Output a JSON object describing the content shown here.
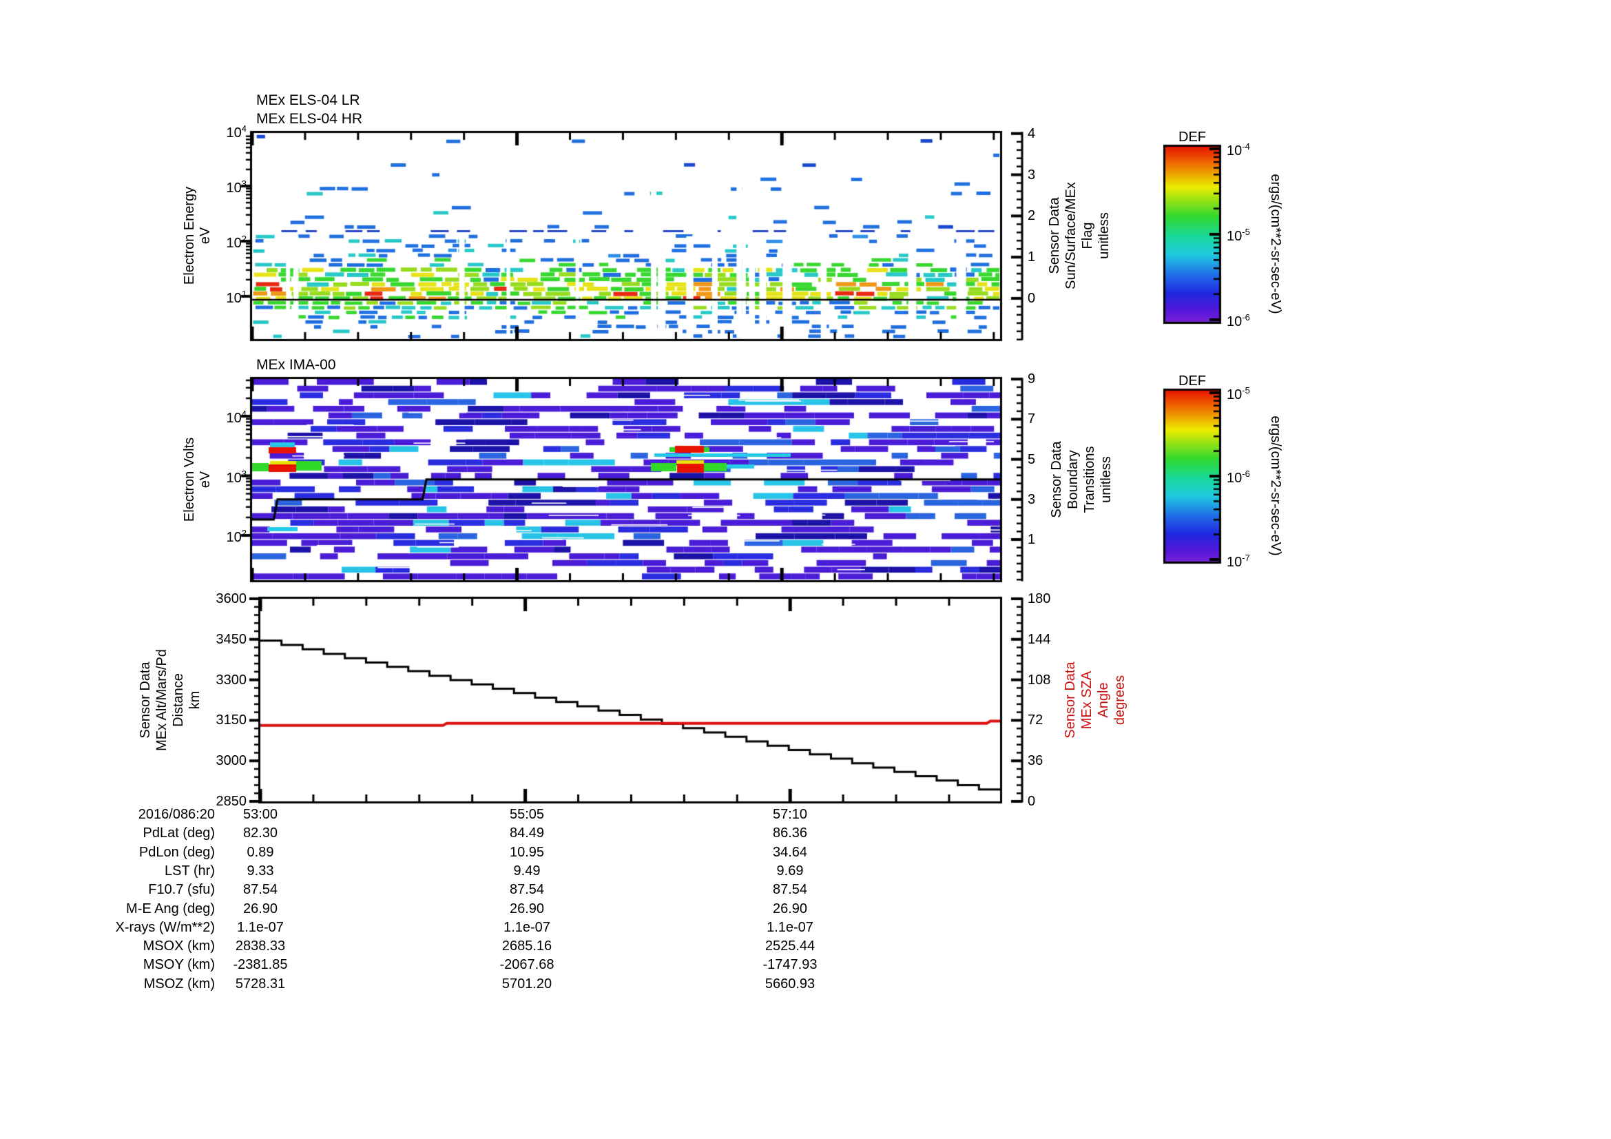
{
  "panels": {
    "els": {
      "titles": [
        "MEx ELS-04 LR",
        "MEx ELS-04 HR"
      ],
      "ylabel_lines": [
        "Electron Energy",
        "eV"
      ],
      "ytick_labels": [
        "10^4",
        "10^3",
        "10^2",
        "10^1"
      ],
      "right_axis": {
        "tick_labels": [
          "4",
          "3",
          "2",
          "1",
          "0"
        ],
        "title_lines": [
          "Sensor Data",
          "Sun/Surface/MEx",
          "Flag",
          "unitless"
        ]
      }
    },
    "ima": {
      "title": "MEx IMA-00",
      "ylabel_lines": [
        "Electron Volts",
        "eV"
      ],
      "ytick_labels": [
        "10^4",
        "10^3",
        "10^2"
      ],
      "right_axis": {
        "tick_labels": [
          "9",
          "7",
          "5",
          "3",
          "1"
        ],
        "title_lines": [
          "Sensor Data",
          "Boundary",
          "Transitions",
          "unitless"
        ]
      }
    },
    "alt": {
      "ylabel_lines": [
        "Sensor Data",
        "MEx Alt/Mars/Pd",
        "Distance",
        "km"
      ],
      "ytick_labels": [
        "3600",
        "3450",
        "3300",
        "3150",
        "3000",
        "2850"
      ],
      "right_axis": {
        "tick_labels": [
          "180",
          "144",
          "108",
          "72",
          "36",
          "0"
        ],
        "title_lines": [
          "Sensor Data",
          "MEx SZA",
          "Angle",
          "degrees"
        ],
        "color": "#cc1111"
      }
    }
  },
  "colorbars": [
    {
      "title": "DEF",
      "tick_labels": [
        "10^-4",
        "10^-5",
        "10^-6"
      ],
      "unit": "ergs/(cm**2-sr-sec-eV)"
    },
    {
      "title": "DEF",
      "tick_labels": [
        "10^-5",
        "10^-6",
        "10^-7"
      ],
      "unit": "ergs/(cm**2-sr-sec-eV)"
    }
  ],
  "xaxis": {
    "tick_labels": [
      "53:00",
      "55:05",
      "57:10"
    ]
  },
  "table": {
    "rows": [
      {
        "label": "2016/086:20",
        "values": [
          "53:00",
          "55:05",
          "57:10"
        ]
      },
      {
        "label": "PdLat (deg)",
        "values": [
          "82.30",
          "84.49",
          "86.36"
        ]
      },
      {
        "label": "PdLon (deg)",
        "values": [
          "0.89",
          "10.95",
          "34.64"
        ]
      },
      {
        "label": "LST (hr)",
        "values": [
          "9.33",
          "9.49",
          "9.69"
        ]
      },
      {
        "label": "F10.7 (sfu)",
        "values": [
          "87.54",
          "87.54",
          "87.54"
        ]
      },
      {
        "label": "M-E Ang (deg)",
        "values": [
          "26.90",
          "26.90",
          "26.90"
        ]
      },
      {
        "label": "X-rays (W/m**2)",
        "values": [
          "1.1e-07",
          "1.1e-07",
          "1.1e-07"
        ]
      },
      {
        "label": "MSOX (km)",
        "values": [
          "2838.33",
          "2685.16",
          "2525.44"
        ]
      },
      {
        "label": "MSOY (km)",
        "values": [
          "-2381.85",
          "-2067.68",
          "-1747.93"
        ]
      },
      {
        "label": "MSOZ (km)",
        "values": [
          "5728.31",
          "5701.20",
          "5660.93"
        ]
      }
    ]
  },
  "chart_data": [
    {
      "type": "heatmap",
      "title": "MEx ELS-04 LR / MEx ELS-04 HR electron energy spectrogram",
      "ylabel": "Electron Energy eV",
      "yrange_log10": [
        0.2,
        4.0
      ],
      "x_ticks": [
        "53:00",
        "55:05",
        "57:10"
      ],
      "colorbar_range": [
        "1e-6",
        "1e-4"
      ],
      "colorbar_unit": "ergs/(cm**2-sr-sec-eV)",
      "flag_line_right_axis": [
        [
          0,
          0
        ],
        [
          1,
          0
        ]
      ],
      "hr_boundary_row_eV": 150,
      "bands": [
        {
          "from": 2,
          "to": 75,
          "density": 0.022,
          "h": 5,
          "wmin": 10,
          "wmax": 26,
          "palette": [
            [
              "#1f6fe0",
              0.8
            ],
            [
              "#1848d0",
              0.2
            ]
          ]
        },
        {
          "from": 75,
          "to": 140,
          "density": 0.065,
          "h": 5,
          "wmin": 10,
          "wmax": 28,
          "palette": [
            [
              "#1f6fe0",
              0.75
            ],
            [
              "#1848d0",
              0.15
            ],
            [
              "#28c8c8",
              0.1
            ]
          ]
        },
        {
          "from": 146,
          "to": 175,
          "density": 0.22,
          "h": 5,
          "wmin": 10,
          "wmax": 30,
          "palette": [
            [
              "#1f6fe0",
              0.72
            ],
            [
              "#2f8fe8",
              0.1
            ],
            [
              "#28c8c8",
              0.18
            ]
          ]
        },
        {
          "from": 175,
          "to": 192,
          "density": 0.5,
          "h": 5,
          "wmin": 12,
          "wmax": 30,
          "palette": [
            [
              "#1f6fe0",
              0.45
            ],
            [
              "#28c8c8",
              0.25
            ],
            [
              "#38d830",
              0.3
            ]
          ]
        },
        {
          "from": 192,
          "to": 212,
          "density": 0.85,
          "h": 6,
          "wmin": 14,
          "wmax": 34,
          "palette": [
            [
              "#38d830",
              0.4
            ],
            [
              "#98dc20",
              0.25
            ],
            [
              "#28c8c8",
              0.15
            ],
            [
              "#1f6fe0",
              0.12
            ],
            [
              "#e6e418",
              0.08
            ]
          ]
        },
        {
          "from": 212,
          "to": 240,
          "density": 0.95,
          "h": 6,
          "wmin": 14,
          "wmax": 36,
          "palette": [
            [
              "#e6e418",
              0.34
            ],
            [
              "#98dc20",
              0.28
            ],
            [
              "#38d830",
              0.18
            ],
            [
              "#f09818",
              0.12
            ],
            [
              "#e82810",
              0.04
            ],
            [
              "#28c8c8",
              0.04
            ]
          ]
        },
        {
          "from": 240,
          "to": 252,
          "density": 0.8,
          "h": 5,
          "wmin": 12,
          "wmax": 30,
          "palette": [
            [
              "#38d830",
              0.35
            ],
            [
              "#98dc20",
              0.2
            ],
            [
              "#28c8c8",
              0.25
            ],
            [
              "#1f6fe0",
              0.2
            ]
          ]
        },
        {
          "from": 252,
          "to": 270,
          "density": 0.5,
          "h": 5,
          "wmin": 12,
          "wmax": 28,
          "palette": [
            [
              "#1f6fe0",
              0.5
            ],
            [
              "#28c8c8",
              0.3
            ],
            [
              "#38d830",
              0.2
            ]
          ]
        },
        {
          "from": 270,
          "to": 292,
          "density": 0.26,
          "h": 5,
          "wmin": 10,
          "wmax": 26,
          "palette": [
            [
              "#1f6fe0",
              0.85
            ],
            [
              "#28c8c8",
              0.15
            ]
          ]
        },
        {
          "from": 292,
          "to": 297,
          "density": 0.12,
          "h": 4,
          "wmin": 10,
          "wmax": 22,
          "palette": [
            [
              "#1f6fe0",
              1.0
            ]
          ]
        }
      ],
      "special_row": {
        "y": 141,
        "density": 0.55,
        "color": "#2244cc",
        "h": 3,
        "wmin": 12,
        "wmax": 30
      },
      "dropouts": {
        "count": 13,
        "wmin": 5,
        "wmax": 15,
        "full_count": 4
      }
    },
    {
      "type": "heatmap",
      "title": "MEx IMA-00 ion spectrogram",
      "ylabel": "Electron Volts eV",
      "yrange_log10": [
        1.25,
        4.62
      ],
      "colorbar_range": [
        "1e-7",
        "1e-5"
      ],
      "colorbar_unit": "ergs/(cm**2-sr-sec-eV)",
      "boundary_line_right_axis": [
        [
          0,
          2
        ],
        [
          0.029,
          2
        ],
        [
          0.034,
          3
        ],
        [
          0.228,
          3
        ],
        [
          0.233,
          4
        ],
        [
          1,
          4
        ]
      ],
      "grid": {
        "nrows": 30,
        "density": 0.58,
        "persist": 0.5,
        "col_min": 20,
        "col_max": 60,
        "white_streaks": 45,
        "palette": [
          [
            "#4a1cd8",
            0.56
          ],
          [
            "#2a2ce0",
            0.16
          ],
          [
            "#2a64e0",
            0.09
          ],
          [
            "#28c4e8",
            0.07
          ],
          [
            "#1c12a8",
            0.12
          ]
        ]
      },
      "features": [
        {
          "x": 392,
          "y": 642,
          "w": 36,
          "h": 7,
          "c": "#28c8e8"
        },
        {
          "x": 390,
          "y": 649,
          "w": 40,
          "h": 9,
          "c": "#e81400"
        },
        {
          "x": 366,
          "y": 672,
          "w": 24,
          "h": 12,
          "c": "#30d828"
        },
        {
          "x": 392,
          "y": 669,
          "w": 38,
          "h": 5,
          "c": "#e8e400"
        },
        {
          "x": 390,
          "y": 674,
          "w": 40,
          "h": 11,
          "c": "#e81400"
        },
        {
          "x": 430,
          "y": 669,
          "w": 37,
          "h": 14,
          "c": "#30d828"
        },
        {
          "x": 388,
          "y": 765,
          "w": 44,
          "h": 6,
          "c": "#28c8e8"
        },
        {
          "x": 972,
          "y": 649,
          "w": 8,
          "h": 7,
          "c": "#30d828"
        },
        {
          "x": 980,
          "y": 647,
          "w": 42,
          "h": 10,
          "c": "#e81400"
        },
        {
          "x": 1022,
          "y": 649,
          "w": 8,
          "h": 7,
          "c": "#30d828"
        },
        {
          "x": 950,
          "y": 658,
          "w": 198,
          "h": 5,
          "c": "#28c8e8"
        },
        {
          "x": 945,
          "y": 672,
          "w": 37,
          "h": 12,
          "c": "#30d828"
        },
        {
          "x": 982,
          "y": 668,
          "w": 40,
          "h": 5,
          "c": "#e8e400"
        },
        {
          "x": 983,
          "y": 673,
          "w": 39,
          "h": 13,
          "c": "#e81400"
        },
        {
          "x": 1022,
          "y": 672,
          "w": 33,
          "h": 12,
          "c": "#30d828"
        },
        {
          "x": 1055,
          "y": 674,
          "w": 40,
          "h": 6,
          "c": "#28c8e8"
        }
      ]
    },
    {
      "type": "line",
      "title": "MEx altitude and solar zenith angle",
      "ylabel": "Sensor Data MEx Alt/Mars/Pd Distance km",
      "y2label": "Sensor Data MEx SZA Angle degrees",
      "ylim": [
        2850,
        3600
      ],
      "y2lim": [
        0,
        180
      ],
      "x_ticks": [
        "53:00",
        "55:05",
        "57:10"
      ],
      "series": [
        {
          "name": "altitude_km_staircase_equal_steps",
          "color": "#000000",
          "values": [
            3445,
            3429,
            3413,
            3396,
            3380,
            3364,
            3348,
            3332,
            3315,
            3299,
            3283,
            3267,
            3251,
            3234,
            3218,
            3202,
            3186,
            3170,
            3153,
            3137,
            3121,
            3105,
            3089,
            3072,
            3056,
            3040,
            3024,
            3008,
            2991,
            2975,
            2959,
            2943,
            2927,
            2910,
            2894
          ]
        },
        {
          "name": "sza_degrees",
          "color": "#dd1111",
          "points_frac_deg": [
            [
              0,
              67.5
            ],
            [
              0.247,
              67.5
            ],
            [
              0.252,
              69.3
            ],
            [
              0.982,
              69.3
            ],
            [
              0.987,
              71.3
            ],
            [
              1,
              71.3
            ]
          ]
        }
      ]
    }
  ],
  "colors": {
    "axis": "#000000",
    "sza_line": "#dd1111",
    "sza_text": "#cc1111",
    "rainbow_stops": [
      [
        "#e81400",
        0
      ],
      [
        "#f07000",
        0.1
      ],
      [
        "#ecec00",
        0.23
      ],
      [
        "#30d830",
        0.4
      ],
      [
        "#18d8a0",
        0.52
      ],
      [
        "#20c8e0",
        0.62
      ],
      [
        "#2068e8",
        0.74
      ],
      [
        "#2028e0",
        0.84
      ],
      [
        "#5018d8",
        0.93
      ],
      [
        "#7821d8",
        1
      ]
    ]
  },
  "seed": 987654321
}
